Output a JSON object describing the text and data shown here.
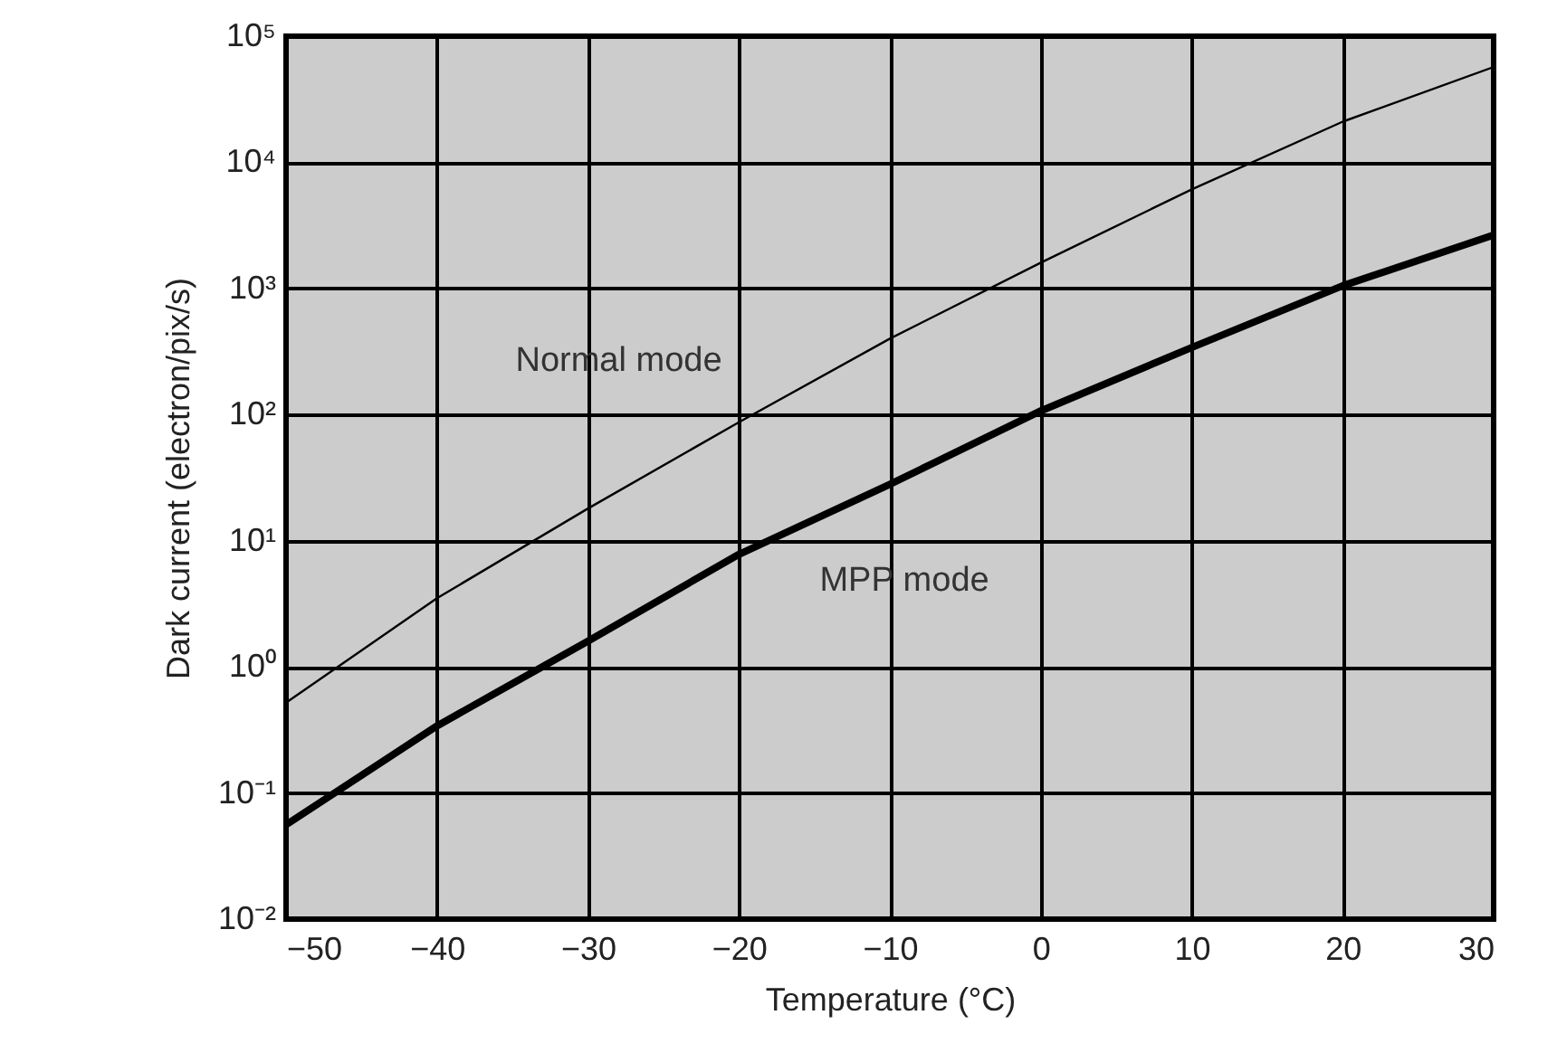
{
  "chart_data": {
    "type": "line",
    "xlabel": "Temperature (°C)",
    "ylabel": "Dark current (electron/pix/s)",
    "x": [
      -50,
      -40,
      -30,
      -20,
      -10,
      0,
      10,
      20,
      30
    ],
    "series": [
      {
        "name": "Normal mode",
        "color": "#000000",
        "values": [
          0.52,
          3.5,
          18,
          87,
          400,
          1600,
          6100,
          21000,
          57000
        ]
      },
      {
        "name": "MPP mode",
        "color": "#000000",
        "values": [
          0.056,
          0.34,
          1.6,
          7.8,
          28,
          107,
          340,
          1050,
          2650
        ]
      }
    ],
    "log": true,
    "grid": true,
    "xlim": [
      -50,
      30
    ],
    "xticks": [
      -50,
      -40,
      -30,
      -20,
      -10,
      0,
      10,
      20,
      30
    ],
    "ylim": [
      0.01,
      100000
    ],
    "yticks": [
      {
        "value": 0.01,
        "label": "10⁻²"
      },
      {
        "value": 0.1,
        "label": "10⁻¹"
      },
      {
        "value": 1,
        "label": "10⁰"
      },
      {
        "value": 10,
        "label": "10¹"
      },
      {
        "value": 100,
        "label": "10²"
      },
      {
        "value": 1000,
        "label": "10³"
      },
      {
        "value": 10000,
        "label": "10⁴"
      },
      {
        "value": 100000,
        "label": "10⁵"
      }
    ]
  }
}
